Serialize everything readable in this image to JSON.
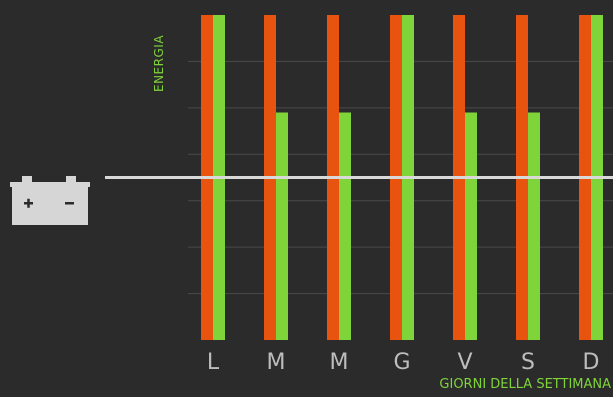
{
  "chart_data": {
    "type": "bar",
    "title": "",
    "xlabel": "GIORNI DELLA SETTIMANA",
    "ylabel": "ENERGIA",
    "categories": [
      "L",
      "M",
      "M",
      "G",
      "V",
      "S",
      "D"
    ],
    "series": [
      {
        "color": "#e8540f",
        "values": [
          100,
          100,
          100,
          100,
          100,
          100,
          100
        ]
      },
      {
        "color": "#7fd43a",
        "values": [
          100,
          70,
          70,
          100,
          70,
          70,
          100
        ]
      }
    ],
    "ylim": [
      0,
      100
    ],
    "reference_line": 50,
    "grid": true,
    "colors": {
      "background": "#2b2b2b",
      "grid": "#4a4a4a",
      "reference": "#d9d9d9",
      "tick": "#bdbdbd"
    }
  },
  "icon": "battery-icon"
}
